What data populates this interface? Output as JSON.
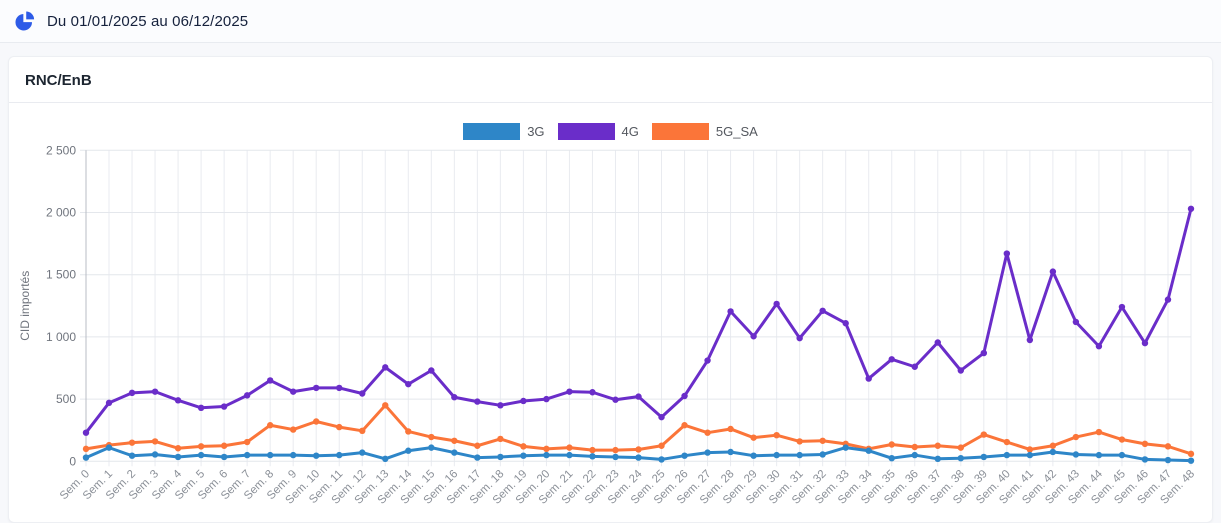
{
  "header": {
    "date_range": "Du 01/01/2025 au 06/12/2025",
    "icon": "pie-chart-icon",
    "icon_color": "#2d5be7"
  },
  "card": {
    "title": "RNC/EnB"
  },
  "chart_data": {
    "type": "line",
    "title": "",
    "xlabel": "",
    "ylabel": "CID importés",
    "ylim": [
      0,
      2500
    ],
    "grid": true,
    "legend_position": "top-center",
    "y_tick_values": [
      0,
      500,
      1000,
      1500,
      2000,
      2500
    ],
    "y_tick_labels": [
      "0",
      "500",
      "1 000",
      "1 500",
      "2 000",
      "2 500"
    ],
    "categories": [
      "Sem. 0",
      "Sem. 1",
      "Sem. 2",
      "Sem. 3",
      "Sem. 4",
      "Sem. 5",
      "Sem. 6",
      "Sem. 7",
      "Sem. 8",
      "Sem. 9",
      "Sem. 10",
      "Sem. 11",
      "Sem. 12",
      "Sem. 13",
      "Sem. 14",
      "Sem. 15",
      "Sem. 16",
      "Sem. 17",
      "Sem. 18",
      "Sem. 19",
      "Sem. 20",
      "Sem. 21",
      "Sem. 22",
      "Sem. 23",
      "Sem. 24",
      "Sem. 25",
      "Sem. 26",
      "Sem. 27",
      "Sem. 28",
      "Sem. 29",
      "Sem. 30",
      "Sem. 31",
      "Sem. 32",
      "Sem. 33",
      "Sem. 34",
      "Sem. 35",
      "Sem. 36",
      "Sem. 37",
      "Sem. 38",
      "Sem. 39",
      "Sem. 40",
      "Sem. 41",
      "Sem. 42",
      "Sem. 43",
      "Sem. 44",
      "Sem. 45",
      "Sem. 46",
      "Sem. 47",
      "Sem. 48"
    ],
    "series": [
      {
        "name": "3G",
        "color": "#2e86c8",
        "values": [
          30,
          110,
          45,
          55,
          35,
          50,
          35,
          50,
          50,
          50,
          45,
          50,
          70,
          20,
          85,
          110,
          70,
          30,
          35,
          45,
          50,
          50,
          40,
          35,
          30,
          15,
          45,
          70,
          75,
          45,
          50,
          50,
          55,
          110,
          85,
          25,
          50,
          20,
          25,
          35,
          50,
          50,
          75,
          55,
          50,
          50,
          15,
          10,
          5
        ]
      },
      {
        "name": "4G",
        "color": "#6a2dc9",
        "values": [
          230,
          470,
          550,
          560,
          490,
          430,
          440,
          530,
          650,
          560,
          590,
          590,
          545,
          755,
          620,
          730,
          515,
          480,
          450,
          485,
          500,
          560,
          555,
          495,
          520,
          355,
          525,
          810,
          1205,
          1005,
          1265,
          990,
          1210,
          1110,
          665,
          820,
          760,
          955,
          730,
          870,
          1670,
          975,
          1525,
          1120,
          925,
          1240,
          950,
          1300,
          2030
        ]
      },
      {
        "name": "5G_SA",
        "color": "#fb7539",
        "values": [
          100,
          130,
          150,
          160,
          105,
          120,
          125,
          155,
          290,
          255,
          320,
          275,
          245,
          450,
          240,
          195,
          165,
          125,
          180,
          120,
          100,
          110,
          90,
          90,
          95,
          125,
          290,
          230,
          260,
          190,
          210,
          160,
          165,
          140,
          100,
          135,
          115,
          125,
          110,
          215,
          155,
          95,
          125,
          195,
          235,
          175,
          140,
          120,
          60
        ]
      }
    ]
  }
}
